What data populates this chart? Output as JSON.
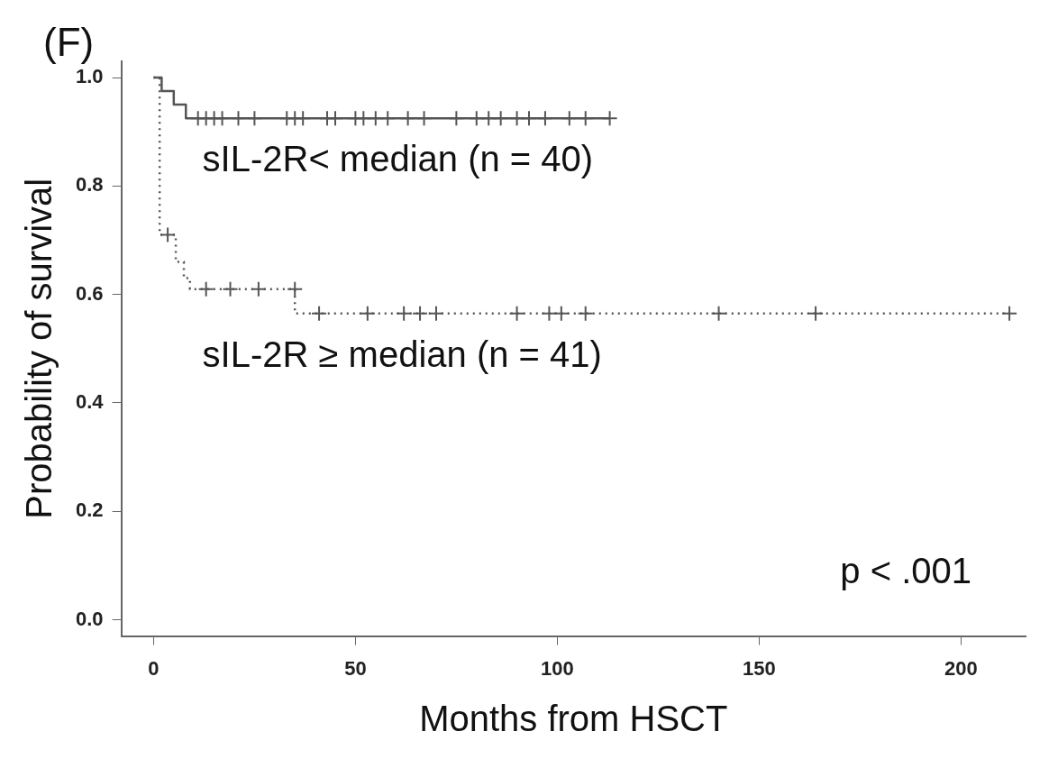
{
  "chart_data": {
    "type": "step",
    "title": "(F)",
    "xlabel": "Months from HSCT",
    "ylabel": "Probability of survival",
    "xlim": [
      -8,
      216
    ],
    "xticks": [
      0,
      50,
      100,
      150,
      200
    ],
    "ylim": [
      -0.03,
      1.03
    ],
    "yticks": [
      {
        "value": 0,
        "label": "0.0"
      },
      {
        "value": 0.2,
        "label": "0.2"
      },
      {
        "value": 0.4,
        "label": "0.4"
      },
      {
        "value": 0.6,
        "label": "0.6"
      },
      {
        "value": 0.8,
        "label": "0.8"
      },
      {
        "value": 1,
        "label": "1.0"
      }
    ],
    "legend": false,
    "series": [
      {
        "name": "sIL-2R< median (n = 40)",
        "color": "#555555",
        "line_style": "solid",
        "marker": "none",
        "x": [
          0,
          2,
          5,
          8,
          113
        ],
        "values": [
          1,
          0.975,
          0.95,
          0.925,
          0.925
        ]
      },
      {
        "name": "sIL-2R ≥ median (n = 41)",
        "color": "#555555",
        "line_style": "dotted",
        "marker": "none",
        "x": [
          0,
          1.5,
          5.5,
          7.5,
          9,
          35,
          212
        ],
        "values": [
          1,
          0.71,
          0.66,
          0.63,
          0.61,
          0.565,
          0.565
        ]
      },
      {
        "type": "scatter",
        "color": "#555555",
        "marker": "cross",
        "x": [
          11,
          13,
          15,
          17,
          21,
          25,
          33,
          35,
          37,
          43,
          45,
          50,
          52,
          55,
          58,
          63,
          67,
          75,
          80,
          83,
          86,
          90,
          93,
          97,
          103,
          107,
          113
        ],
        "values": [
          0.925,
          0.925,
          0.925,
          0.925,
          0.925,
          0.925,
          0.925,
          0.925,
          0.925,
          0.925,
          0.925,
          0.925,
          0.925,
          0.925,
          0.925,
          0.925,
          0.925,
          0.925,
          0.925,
          0.925,
          0.925,
          0.925,
          0.925,
          0.925,
          0.925,
          0.925,
          0.925
        ]
      },
      {
        "type": "scatter",
        "color": "#555555",
        "marker": "cross",
        "x": [
          3.5,
          13,
          19,
          26,
          35,
          41,
          53,
          62,
          66,
          70,
          90,
          98,
          101,
          107,
          140,
          164,
          212
        ],
        "values": [
          0.71,
          0.61,
          0.61,
          0.61,
          0.61,
          0.565,
          0.565,
          0.565,
          0.565,
          0.565,
          0.565,
          0.565,
          0.565,
          0.565,
          0.565,
          0.565,
          0.565
        ]
      }
    ],
    "annotations": [
      "p < .001"
    ]
  }
}
